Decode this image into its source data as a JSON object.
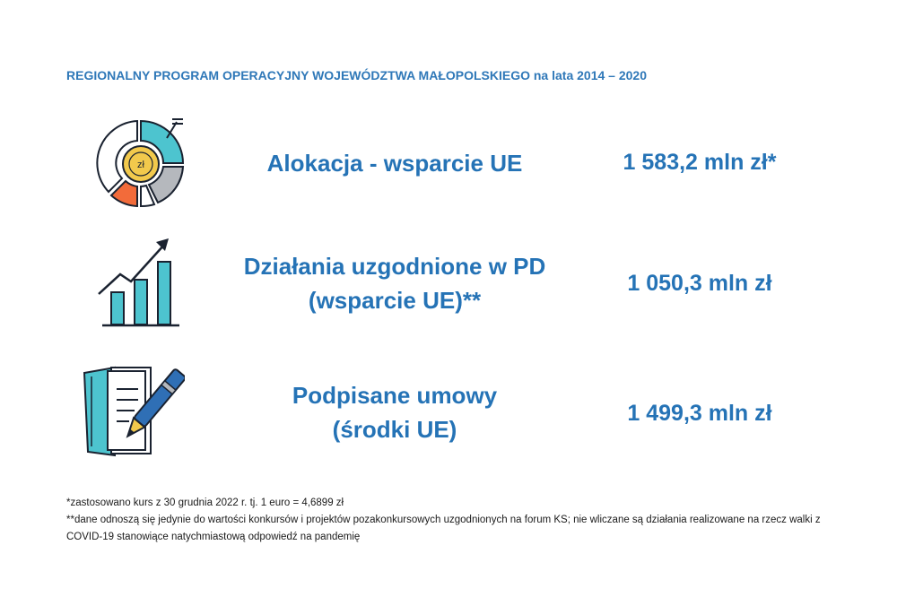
{
  "header": {
    "title": "REGIONALNY PROGRAM OPERACYJNY WOJEWÓDZTWA MAŁOPOLSKIEGO na lata 2014 – 2020"
  },
  "rows": [
    {
      "icon": "pie-chart-coin-icon",
      "label_lines": [
        "Alokacja - wsparcie UE"
      ],
      "value": "1 583,2 mln zł*",
      "coin_text": "zł"
    },
    {
      "icon": "growth-bar-chart-icon",
      "label_lines": [
        "Działania uzgodnione w PD",
        "(wsparcie UE)**"
      ],
      "value": "1 050,3 mln zł"
    },
    {
      "icon": "notebook-pen-icon",
      "label_lines": [
        "Podpisane umowy",
        "(środki UE)"
      ],
      "value": "1 499,3 mln zł"
    }
  ],
  "footnotes": [
    "*zastosowano kurs z 30 grudnia 2022 r. tj. 1 euro = 4,6899 zł",
    "**dane odnoszą się jedynie do wartości konkursów i projektów pozakonkursowych uzgodnionych na forum KS; nie wliczane są działania realizowane na rzecz walki z COVID-19 stanowiące natychmiastową odpowiedź na pandemię"
  ],
  "colors": {
    "text_blue": "#2573b6",
    "teal": "#4dc4cf",
    "orange": "#f26b3a",
    "gray": "#b5b8bd",
    "gold": "#f2c94c",
    "dark": "#1a2230"
  }
}
